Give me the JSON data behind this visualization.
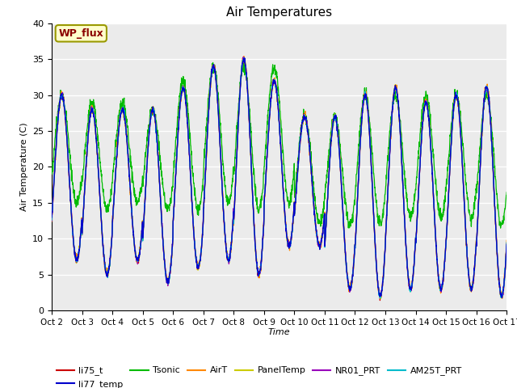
{
  "title": "Air Temperatures",
  "xlabel": "Time",
  "ylabel": "Air Temperature (C)",
  "ylim": [
    0,
    40
  ],
  "yticks": [
    0,
    5,
    10,
    15,
    20,
    25,
    30,
    35,
    40
  ],
  "xtick_labels": [
    "Oct 2",
    "Oct 3",
    "Oct 4",
    "Oct 5",
    "Oct 6",
    "Oct 7",
    "Oct 8",
    "Oct 9",
    "Oct 10",
    "Oct 11",
    "Oct 12",
    "Oct 13",
    "Oct 14",
    "Oct 15",
    "Oct 16",
    "Oct 17"
  ],
  "annotation_text": "WP_flux",
  "colors": {
    "li75_t": "#cc0000",
    "li77_temp": "#0000cc",
    "Tsonic": "#00bb00",
    "AirT": "#ff8800",
    "PanelTemp": "#cccc00",
    "NR01_PRT": "#9900bb",
    "AM25T_PRT": "#00bbcc"
  },
  "plot_bg_color": "#ebebeb",
  "fig_bg_color": "#ffffff"
}
